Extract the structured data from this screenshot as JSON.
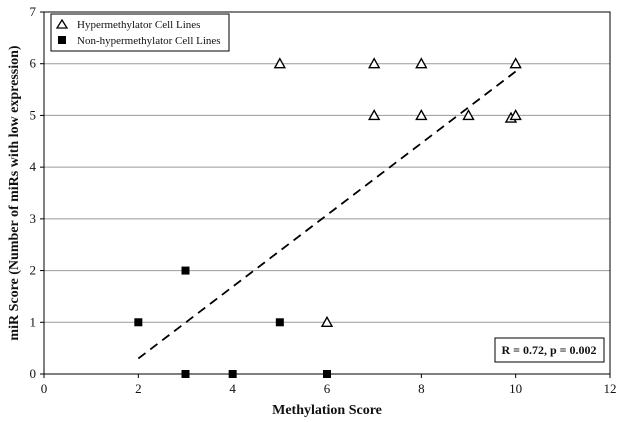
{
  "chart_data": {
    "type": "scatter",
    "xlabel": "Methylation Score",
    "ylabel": "miR Score (Number of miRs with low expression)",
    "xlim": [
      0,
      12
    ],
    "ylim": [
      0,
      7
    ],
    "xticks": [
      "0",
      "2",
      "4",
      "6",
      "8",
      "10",
      "12"
    ],
    "yticks": [
      "0",
      "1",
      "2",
      "3",
      "4",
      "5",
      "6",
      "7"
    ],
    "grid": "horizontal",
    "legend_position": "top-left",
    "series": [
      {
        "name": "Hypermethylator Cell Lines",
        "marker": "open-triangle",
        "color": "#000000",
        "points": [
          {
            "x": 5,
            "y": 6
          },
          {
            "x": 7,
            "y": 6
          },
          {
            "x": 8,
            "y": 6
          },
          {
            "x": 10,
            "y": 6
          },
          {
            "x": 7,
            "y": 5
          },
          {
            "x": 8,
            "y": 5
          },
          {
            "x": 9,
            "y": 5
          },
          {
            "x": 9.9,
            "y": 4.95
          },
          {
            "x": 10,
            "y": 5
          },
          {
            "x": 6,
            "y": 1
          }
        ]
      },
      {
        "name": "Non-hypermethylator Cell Lines",
        "marker": "filled-square",
        "color": "#000000",
        "points": [
          {
            "x": 2,
            "y": 1
          },
          {
            "x": 3,
            "y": 2
          },
          {
            "x": 3,
            "y": 0
          },
          {
            "x": 4,
            "y": 0
          },
          {
            "x": 5,
            "y": 1
          },
          {
            "x": 6,
            "y": 0
          }
        ]
      }
    ],
    "trendline": {
      "style": "dashed",
      "from": {
        "x": 2,
        "y": 0.3
      },
      "to": {
        "x": 10,
        "y": 5.85
      }
    },
    "annotation": "R = 0.72, p = 0.002"
  }
}
